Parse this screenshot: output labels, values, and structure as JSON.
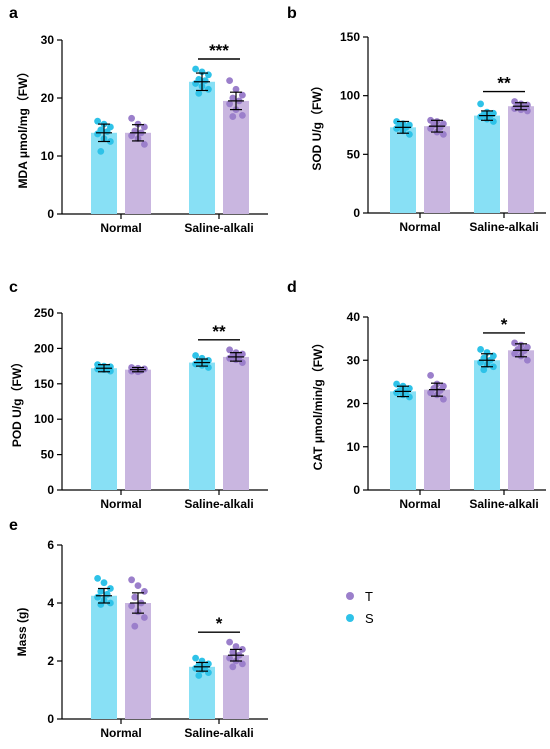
{
  "colors": {
    "S": "#88E0F5",
    "S_dot": "#2EC2E8",
    "T": "#C9B6E0",
    "T_dot": "#9B7FCB"
  },
  "legend": {
    "items": [
      {
        "name": "T",
        "color": "#9B7FCB"
      },
      {
        "name": "S",
        "color": "#2EC2E8"
      }
    ]
  },
  "chart_data": [
    {
      "type": "bar",
      "panel": "a",
      "ylabel": "MDA μmol/mg（FW）",
      "categories": [
        "Normal",
        "Saline-alkali"
      ],
      "ylim": [
        0,
        30
      ],
      "yticks": [
        0,
        10,
        20,
        30
      ],
      "series": [
        {
          "name": "S",
          "values": [
            14.0,
            22.8
          ],
          "sd": [
            1.5,
            1.5
          ],
          "points": [
            [
              16.0,
              15.5,
              15.0,
              14.5,
              14.2,
              13.8,
              13.0,
              12.5,
              10.8
            ],
            [
              25.0,
              24.5,
              24.0,
              23.2,
              23.0,
              22.5,
              22.0,
              21.5,
              20.8
            ]
          ]
        },
        {
          "name": "T",
          "values": [
            14.0,
            19.5
          ],
          "sd": [
            1.4,
            1.5
          ],
          "points": [
            [
              16.5,
              15.5,
              15.0,
              14.3,
              14.0,
              13.5,
              13.0,
              12.0
            ],
            [
              23.0,
              21.5,
              20.5,
              20.0,
              19.5,
              19.0,
              18.0,
              17.0,
              16.8
            ]
          ]
        }
      ],
      "significance": [
        {
          "category": "Saline-alkali",
          "label": "***"
        }
      ]
    },
    {
      "type": "bar",
      "panel": "b",
      "ylabel": "SOD U/g（FW）",
      "categories": [
        "Normal",
        "Saline-alkali"
      ],
      "ylim": [
        0,
        150
      ],
      "yticks": [
        0,
        50,
        100,
        150
      ],
      "series": [
        {
          "name": "S",
          "values": [
            73,
            83
          ],
          "sd": [
            5,
            4
          ],
          "points": [
            [
              78,
              76,
              75,
              74,
              73,
              72,
              70,
              67
            ],
            [
              93,
              86,
              85,
              84,
              83,
              82,
              80,
              78
            ]
          ]
        },
        {
          "name": "T",
          "values": [
            74,
            91
          ],
          "sd": [
            5,
            3
          ],
          "points": [
            [
              79,
              78,
              76,
              75,
              73,
              72,
              69,
              67
            ],
            [
              95,
              93,
              92,
              91,
              90,
              89,
              88,
              87
            ]
          ]
        }
      ],
      "significance": [
        {
          "category": "Saline-alkali",
          "label": "**"
        }
      ]
    },
    {
      "type": "bar",
      "panel": "c",
      "ylabel": "POD U/g（FW）",
      "categories": [
        "Normal",
        "Saline-alkali"
      ],
      "ylim": [
        0,
        250
      ],
      "yticks": [
        0,
        50,
        100,
        150,
        200,
        250
      ],
      "series": [
        {
          "name": "S",
          "values": [
            172,
            180
          ],
          "sd": [
            5,
            5
          ],
          "points": [
            [
              177,
              175,
              174,
              173,
              172,
              171,
              170,
              168
            ],
            [
              190,
              186,
              183,
              181,
              180,
              178,
              176,
              173
            ]
          ]
        },
        {
          "name": "T",
          "values": [
            170,
            188
          ],
          "sd": [
            3,
            6
          ],
          "points": [
            [
              173,
              172,
              171,
              170,
              169,
              168,
              167
            ],
            [
              198,
              194,
              192,
              190,
              188,
              186,
              184,
              180
            ]
          ]
        }
      ],
      "significance": [
        {
          "category": "Saline-alkali",
          "label": "**"
        }
      ]
    },
    {
      "type": "bar",
      "panel": "d",
      "ylabel": "CAT μmol/min/g（FW）",
      "categories": [
        "Normal",
        "Saline-alkali"
      ],
      "ylim": [
        0,
        40
      ],
      "yticks": [
        0,
        10,
        20,
        30,
        40
      ],
      "series": [
        {
          "name": "S",
          "values": [
            22.8,
            30.0
          ],
          "sd": [
            1.2,
            1.5
          ],
          "points": [
            [
              24.5,
              24.0,
              23.5,
              23.0,
              22.8,
              22.5,
              22.0,
              21.5
            ],
            [
              32.5,
              31.8,
              31.0,
              30.5,
              30.0,
              29.5,
              29.0,
              28.5,
              27.8
            ]
          ]
        },
        {
          "name": "T",
          "values": [
            23.2,
            32.3
          ],
          "sd": [
            1.5,
            1.5
          ],
          "points": [
            [
              26.5,
              24.5,
              24.0,
              23.5,
              23.0,
              22.5,
              22.0,
              21.0
            ],
            [
              34.0,
              33.5,
              33.0,
              32.5,
              32.2,
              31.5,
              31.0,
              30.0
            ]
          ]
        }
      ],
      "significance": [
        {
          "category": "Saline-alkali",
          "label": "*"
        }
      ]
    },
    {
      "type": "bar",
      "panel": "e",
      "ylabel": "Mass (g)",
      "categories": [
        "Normal",
        "Saline-alkali"
      ],
      "ylim": [
        0,
        6
      ],
      "yticks": [
        0,
        2,
        4,
        6
      ],
      "series": [
        {
          "name": "S",
          "values": [
            4.25,
            1.8
          ],
          "sd": [
            0.25,
            0.15
          ],
          "points": [
            [
              4.85,
              4.7,
              4.5,
              4.4,
              4.3,
              4.2,
              4.1,
              4.0,
              3.95
            ],
            [
              2.1,
              2.0,
              1.9,
              1.85,
              1.8,
              1.75,
              1.7,
              1.6,
              1.5
            ]
          ]
        },
        {
          "name": "T",
          "values": [
            4.0,
            2.2
          ],
          "sd": [
            0.35,
            0.2
          ],
          "points": [
            [
              4.8,
              4.6,
              4.4,
              4.2,
              4.0,
              3.9,
              3.7,
              3.5,
              3.2
            ],
            [
              2.65,
              2.5,
              2.4,
              2.3,
              2.2,
              2.1,
              2.0,
              1.9,
              1.8
            ]
          ]
        }
      ],
      "significance": [
        {
          "category": "Saline-alkali",
          "label": "*"
        }
      ]
    }
  ]
}
